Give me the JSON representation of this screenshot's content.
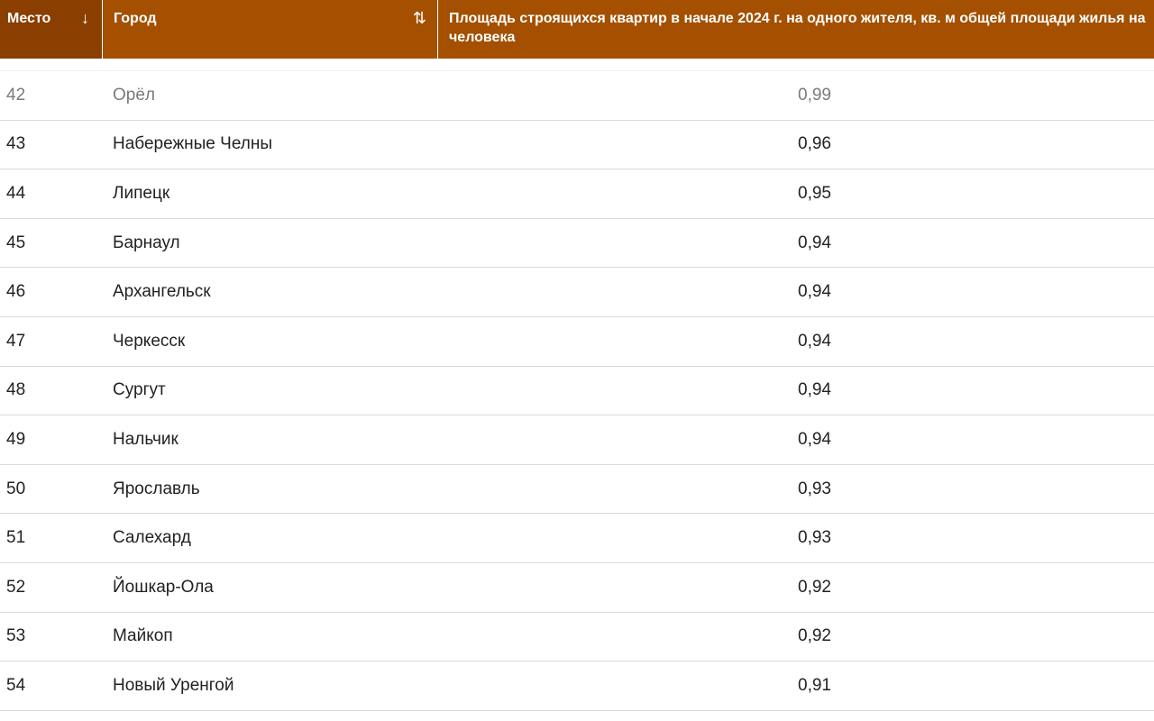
{
  "table": {
    "columns": {
      "place": "Место",
      "city": "Город",
      "value": "Площадь строящихся квартир в начале 2024 г. на одного жителя, кв. м общей площади жилья на человека"
    },
    "icons": {
      "place_sort": "arrow-down-icon",
      "city_sort": "sort-updown-icon"
    },
    "colors": {
      "header_bg": "#a45000",
      "header_active_bg": "#8a3f00"
    },
    "rows": [
      {
        "place": "42",
        "city": "Орёл",
        "value": "0,99"
      },
      {
        "place": "43",
        "city": "Набережные Челны",
        "value": "0,96"
      },
      {
        "place": "44",
        "city": "Липецк",
        "value": "0,95"
      },
      {
        "place": "45",
        "city": "Барнаул",
        "value": "0,94"
      },
      {
        "place": "46",
        "city": "Архангельск",
        "value": "0,94"
      },
      {
        "place": "47",
        "city": "Черкесск",
        "value": "0,94"
      },
      {
        "place": "48",
        "city": "Сургут",
        "value": "0,94"
      },
      {
        "place": "49",
        "city": "Нальчик",
        "value": "0,94"
      },
      {
        "place": "50",
        "city": "Ярославль",
        "value": "0,93"
      },
      {
        "place": "51",
        "city": "Салехард",
        "value": "0,93"
      },
      {
        "place": "52",
        "city": "Йошкар-Ола",
        "value": "0,92"
      },
      {
        "place": "53",
        "city": "Майкоп",
        "value": "0,92"
      },
      {
        "place": "54",
        "city": "Новый Уренгой",
        "value": "0,91"
      }
    ]
  }
}
